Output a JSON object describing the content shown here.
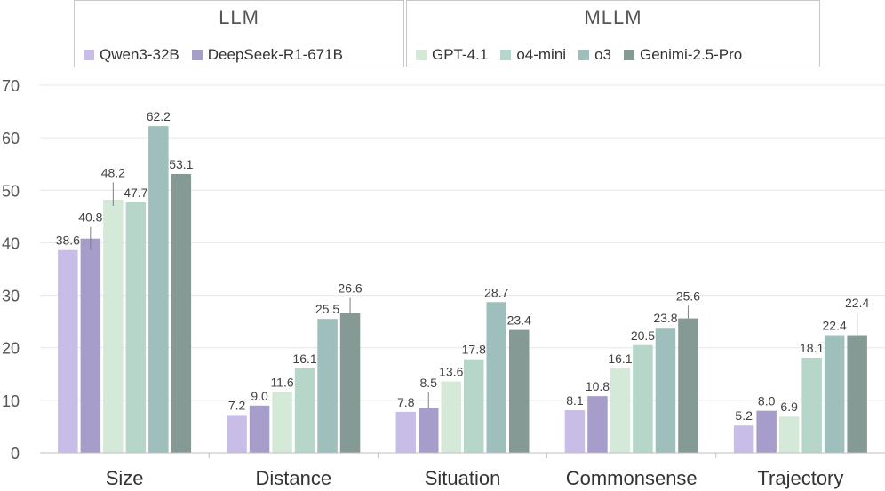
{
  "chart_data": {
    "type": "bar",
    "categories": [
      "Size",
      "Distance",
      "Situation",
      "Commonsense",
      "Trajectory"
    ],
    "legend_groups": [
      {
        "title": "LLM",
        "series_indices": [
          0,
          1
        ]
      },
      {
        "title": "MLLM",
        "series_indices": [
          2,
          3,
          4,
          5
        ]
      }
    ],
    "series": [
      {
        "name": "Qwen3-32B",
        "color": "#c7bde6",
        "values": [
          38.6,
          7.2,
          7.8,
          8.1,
          5.2
        ]
      },
      {
        "name": "DeepSeek-R1-671B",
        "color": "#a79dca",
        "values": [
          40.8,
          9.0,
          8.5,
          10.8,
          8.0
        ]
      },
      {
        "name": "GPT-4.1",
        "color": "#d5e9d9",
        "values": [
          48.2,
          11.6,
          13.6,
          16.1,
          6.9
        ]
      },
      {
        "name": "o4-mini",
        "color": "#b6d6c9",
        "values": [
          47.7,
          16.1,
          17.8,
          20.5,
          18.1
        ]
      },
      {
        "name": "o3",
        "color": "#9ebfbb",
        "values": [
          62.2,
          25.5,
          28.7,
          23.8,
          22.4
        ]
      },
      {
        "name": "Genimi-2.5-Pro",
        "color": "#869a95",
        "values": [
          53.1,
          26.6,
          23.4,
          25.6,
          22.4
        ]
      }
    ],
    "error_bars": [
      {
        "series": 1,
        "category": 0,
        "low": 38.6,
        "high": 43.0
      },
      {
        "series": 2,
        "category": 0,
        "low": 47.0,
        "high": 51.5
      },
      {
        "series": 5,
        "category": 1,
        "low": 26.6,
        "high": 29.5
      },
      {
        "series": 1,
        "category": 2,
        "low": 8.5,
        "high": 11.5
      },
      {
        "series": 5,
        "category": 3,
        "low": 25.6,
        "high": 28.0
      },
      {
        "series": 5,
        "category": 4,
        "low": 22.4,
        "high": 26.7
      }
    ],
    "yticks": [
      0,
      10,
      20,
      30,
      40,
      50,
      60,
      70
    ],
    "ylim": [
      0,
      70
    ],
    "grid": true,
    "legend_position": "top"
  }
}
